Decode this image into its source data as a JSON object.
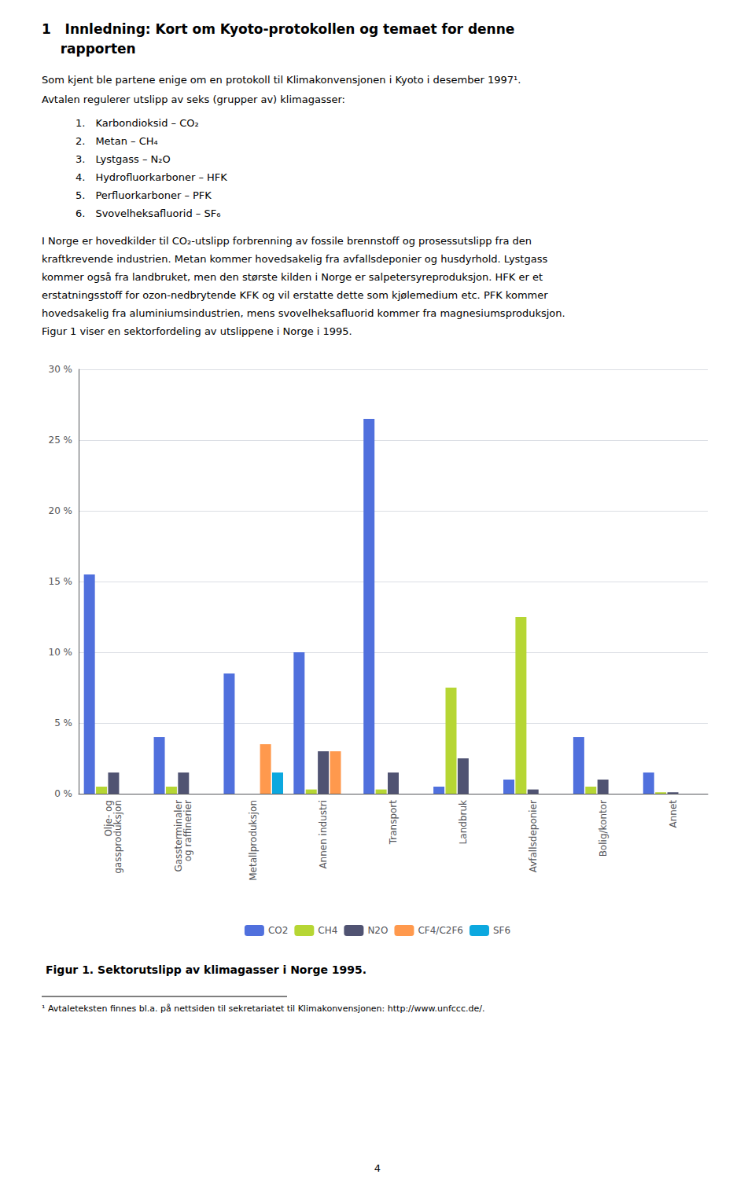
{
  "chart_data": {
    "type": "bar",
    "title": "Figur 1. Sektorutslipp av klimagasser i Norge 1995.",
    "categories": [
      "Olje- og\ngassproduksjon",
      "Gassterminaler\nog raffinerier",
      "Metallproduksjon",
      "Annen industri",
      "Transport",
      "Landbruk",
      "Avfallsdeponier",
      "Bolig/kontor",
      "Annet"
    ],
    "series": [
      {
        "name": "CO2",
        "values": [
          15.5,
          4.0,
          8.5,
          10.0,
          26.5,
          0.5,
          1.0,
          4.0,
          1.5
        ]
      },
      {
        "name": "CH4",
        "values": [
          0.5,
          0.5,
          0.0,
          0.3,
          0.3,
          7.5,
          12.5,
          0.5,
          0.1
        ]
      },
      {
        "name": "N2O",
        "values": [
          1.5,
          1.5,
          0.0,
          3.0,
          1.5,
          2.5,
          0.3,
          1.0,
          0.1
        ]
      },
      {
        "name": "CF4/C2F6",
        "values": [
          0.0,
          0.0,
          3.5,
          3.0,
          0.0,
          0.0,
          0.0,
          0.0,
          0.0
        ]
      },
      {
        "name": "SF6",
        "values": [
          0.0,
          0.0,
          1.5,
          0.0,
          0.0,
          0.0,
          0.0,
          0.0,
          0.0
        ]
      }
    ],
    "ylim": [
      0,
      30
    ],
    "yticks": [
      {
        "value": 0,
        "label": "0 %"
      },
      {
        "value": 5,
        "label": "5 %"
      },
      {
        "value": 10,
        "label": "10 %"
      },
      {
        "value": 15,
        "label": "15 %"
      },
      {
        "value": 20,
        "label": "20 %"
      },
      {
        "value": 25,
        "label": "25 %"
      },
      {
        "value": 30,
        "label": "30 %"
      }
    ],
    "grid": true,
    "legend": "bottom",
    "annotations": [
      "1   Innledning: Kort om Kyoto-protokollen og temaet for denne",
      "    rapporten",
      "Som kjent ble partene enige om en protokoll til Klimakonvensjonen i Kyoto i desember 1997¹.",
      "Avtalen regulerer utslipp av seks (grupper av) klimagasser:",
      "1. Karbondioksid – CO₂",
      "2. Metan – CH₄",
      "3. Lystgass – N₂O",
      "4. Hydrofluorkarboner – HFK",
      "5. Perfluorkarboner – PFK",
      "6. Svovelheksafluorid – SF₆",
      "I Norge er hovedkilder til CO₂-utslipp forbrenning av fossile brennstoff og prosessutslipp fra den",
      "kraftkrevende industrien. Metan kommer hovedsakelig fra avfallsdeponier og husdyrhold. Lystgass",
      "kommer også fra landbruket, men den største kilden i Norge er salpetersyreproduksjon. HFK er et",
      "erstatningsstoff for ozon-nedbrytende KFK og vil erstatte dette som kjølemedium etc. PFK kommer",
      "hovedsakelig fra aluminiumsindustrien, mens svovelheksafluorid kommer fra magnesiumsproduksjon.",
      "Figur 1 viser en sektorfordeling av utslippene i Norge i 1995.",
      "¹ Avtaleteksten finnes bl.a. på nettsiden til sekretariatet til Klimakonvensjonen: http://www.unfccc.de/.",
      "4"
    ]
  }
}
